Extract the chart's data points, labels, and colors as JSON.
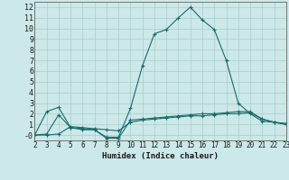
{
  "xlabel": "Humidex (Indice chaleur)",
  "background_color": "#cce8e8",
  "grid_color": "#aacccc",
  "line_color": "#1a6b6b",
  "xlim": [
    2,
    23
  ],
  "ylim": [
    -0.5,
    12.5
  ],
  "yticks": [
    0,
    1,
    2,
    3,
    4,
    5,
    6,
    7,
    8,
    9,
    10,
    11,
    12
  ],
  "xticks": [
    2,
    3,
    4,
    5,
    6,
    7,
    8,
    9,
    10,
    11,
    12,
    13,
    14,
    15,
    16,
    17,
    18,
    19,
    20,
    21,
    22,
    23
  ],
  "series": [
    {
      "x": [
        2,
        3,
        4,
        5,
        6,
        7,
        8,
        9,
        10,
        11,
        12,
        13,
        14,
        15,
        16,
        17,
        18,
        19,
        20,
        21,
        22,
        23
      ],
      "y": [
        0.0,
        2.2,
        2.6,
        0.7,
        0.6,
        0.5,
        -0.2,
        -0.2,
        2.5,
        6.5,
        9.5,
        9.9,
        11.0,
        12.0,
        10.8,
        9.9,
        7.0,
        3.0,
        2.0,
        1.3,
        1.2,
        1.1
      ]
    },
    {
      "x": [
        2,
        3,
        4,
        5,
        6,
        7,
        8,
        9,
        10,
        11,
        12,
        13,
        14,
        15,
        16,
        17,
        18,
        19,
        20,
        21,
        22,
        23
      ],
      "y": [
        0.0,
        0.1,
        1.9,
        0.7,
        0.5,
        0.5,
        -0.3,
        -0.3,
        1.4,
        1.5,
        1.6,
        1.7,
        1.8,
        1.9,
        2.0,
        2.0,
        2.1,
        2.2,
        2.2,
        1.5,
        1.2,
        1.0
      ]
    },
    {
      "x": [
        2,
        3,
        4,
        5,
        6,
        7,
        8,
        9,
        10,
        11,
        12,
        13,
        14,
        15,
        16,
        17,
        18,
        19,
        20,
        21,
        22,
        23
      ],
      "y": [
        0.0,
        0.0,
        0.1,
        0.8,
        0.7,
        0.6,
        0.5,
        0.4,
        1.2,
        1.4,
        1.5,
        1.6,
        1.7,
        1.8,
        1.8,
        1.9,
        2.0,
        2.0,
        2.1,
        1.5,
        1.2,
        1.0
      ]
    }
  ]
}
